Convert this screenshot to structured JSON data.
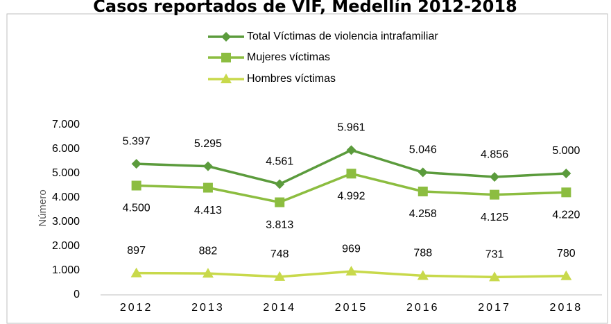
{
  "chart_data": {
    "type": "line",
    "title": "Casos reportados de VIF, Medellín 2012-2018",
    "ylabel": "Número",
    "categories": [
      "2012",
      "2013",
      "2014",
      "2015",
      "2016",
      "2017",
      "2018"
    ],
    "series": [
      {
        "name": "Total Víctimas de violencia intrafamiliar",
        "color": "#5b9b3c",
        "marker": "diamond",
        "label_side": "above",
        "values": [
          5397,
          5295,
          4561,
          5961,
          5046,
          4856,
          5000
        ],
        "value_labels": [
          "5.397",
          "5.295",
          "4.561",
          "5.961",
          "5.046",
          "4.856",
          "5.000"
        ]
      },
      {
        "name": "Mujeres víctimas",
        "color": "#8cbd40",
        "marker": "square",
        "label_side": "below",
        "values": [
          4500,
          4413,
          3813,
          4992,
          4258,
          4125,
          4220
        ],
        "value_labels": [
          "4.500",
          "4.413",
          "3.813",
          "4.992",
          "4.258",
          "4.125",
          "4.220"
        ]
      },
      {
        "name": "Hombres víctimas",
        "color": "#c8d94b",
        "marker": "triangle",
        "label_side": "above",
        "values": [
          897,
          882,
          748,
          969,
          788,
          731,
          780
        ],
        "value_labels": [
          "897",
          "882",
          "748",
          "969",
          "788",
          "731",
          "780"
        ]
      }
    ],
    "ylim": [
      0,
      7000
    ],
    "yticks": [
      0,
      {
        "value": 1000,
        "label": "1.000"
      },
      {
        "value": 2000,
        "label": "2.000"
      },
      {
        "value": 3000,
        "label": "3.000"
      },
      {
        "value": 4000,
        "label": "4.000"
      },
      {
        "value": 5000,
        "label": "5.000"
      },
      {
        "value": 6000,
        "label": "6.000"
      },
      {
        "value": 7000,
        "label": "7.000"
      }
    ],
    "grid": false
  }
}
